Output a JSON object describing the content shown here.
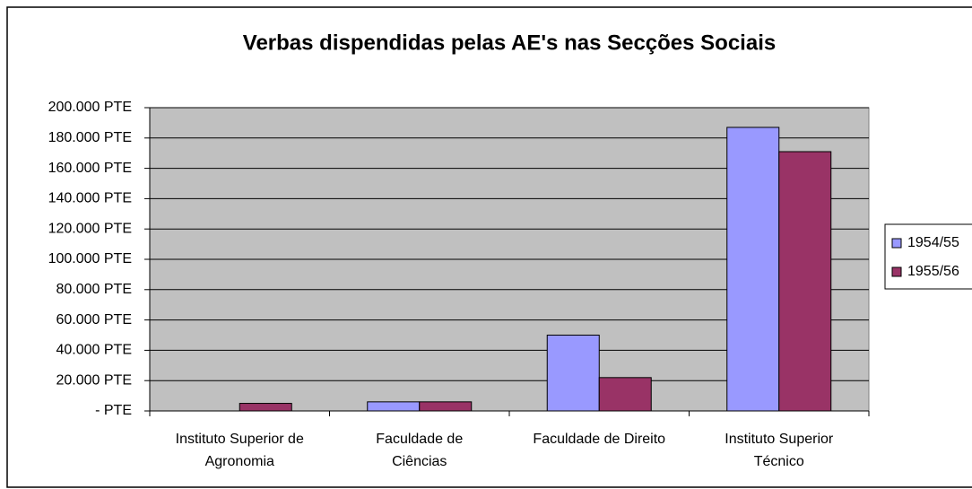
{
  "chart_data": {
    "type": "bar",
    "title": "Verbas dispendidas pelas AE's nas Secções Sociais",
    "categories": [
      [
        "Instituto Superior de",
        "Agronomia"
      ],
      [
        "Faculdade de",
        "Ciências"
      ],
      [
        "Faculdade de Direito"
      ],
      [
        "Instituto Superior",
        "Técnico"
      ]
    ],
    "series": [
      {
        "name": "1954/55",
        "color": "#9999ff",
        "values": [
          0,
          6000,
          50000,
          187000
        ]
      },
      {
        "name": "1955/56",
        "color": "#993366",
        "values": [
          5000,
          6000,
          22000,
          171000
        ]
      }
    ],
    "ylim": [
      0,
      200000
    ],
    "yticks": [
      {
        "value": 0,
        "label": "- PTE"
      },
      {
        "value": 20000,
        "label": "20.000 PTE"
      },
      {
        "value": 40000,
        "label": "40.000 PTE"
      },
      {
        "value": 60000,
        "label": "60.000 PTE"
      },
      {
        "value": 80000,
        "label": "80.000 PTE"
      },
      {
        "value": 100000,
        "label": "100.000 PTE"
      },
      {
        "value": 120000,
        "label": "120.000 PTE"
      },
      {
        "value": 140000,
        "label": "140.000 PTE"
      },
      {
        "value": 160000,
        "label": "160.000 PTE"
      },
      {
        "value": 180000,
        "label": "180.000 PTE"
      },
      {
        "value": 200000,
        "label": "200.000 PTE"
      }
    ],
    "grid": true,
    "legend": "right",
    "plot_background": "#c0c0c0"
  }
}
